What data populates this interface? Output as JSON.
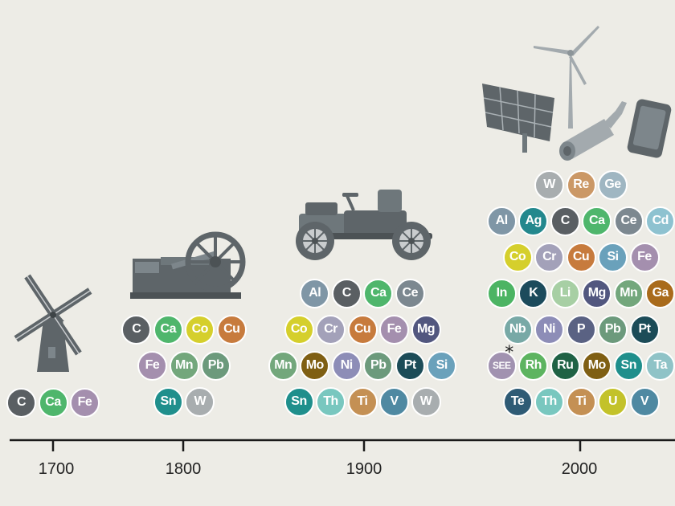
{
  "colors": {
    "C": "#5a5f63",
    "Ca": "#4fb66c",
    "Fe": "#a48fae",
    "Co": "#d5cf2c",
    "Cu": "#c77b3d",
    "Mn": "#73a77c",
    "Pb": "#6c9a7c",
    "Sn": "#1f8f8c",
    "W": "#a8adaf",
    "Al": "#7f96a6",
    "Ce": "#7c8890",
    "Cr": "#a3a1b9",
    "Mg": "#52577f",
    "Mo": "#7f5f13",
    "Ni": "#8d8db7",
    "Pt": "#1c4c58",
    "Si": "#6aa1bb",
    "Th": "#79c7bf",
    "Ti": "#c49054",
    "V": "#4f89a2",
    "Re": "#cb9866",
    "Ge": "#9fb6c2",
    "Ag": "#23888d",
    "Cd": "#8ec2d0",
    "In": "#4cb463",
    "K": "#1c4b5c",
    "Li": "#a7cfa4",
    "Ga": "#a96b1b",
    "Nb": "#78a9a6",
    "P": "#5a6283",
    "SEE": "#a192b0",
    "Rh": "#5db460",
    "Ru": "#1f6245",
    "Ta": "#8fc3c7",
    "Te": "#2f5b75",
    "U": "#c3c22a"
  },
  "eras": [
    {
      "year": "1700",
      "image": "windmill-icon",
      "rows": [
        [
          "C",
          "Ca",
          "Fe"
        ]
      ]
    },
    {
      "year": "1800",
      "image": "steam-engine-icon",
      "rows": [
        [
          "C",
          "Ca",
          "Co",
          "Cu"
        ],
        [
          "Fe",
          "Mn",
          "Pb"
        ],
        [
          "Sn",
          "W"
        ]
      ]
    },
    {
      "year": "1900",
      "image": "car-icon",
      "rows": [
        [
          "Al",
          "C",
          "Ca",
          "Ce"
        ],
        [
          "Co",
          "Cr",
          "Cu",
          "Fe",
          "Mg"
        ],
        [
          "Mn",
          "Mo",
          "Ni",
          "Pb",
          "Pt",
          "Si"
        ],
        [
          "Sn",
          "Th",
          "Ti",
          "V",
          "W"
        ]
      ]
    },
    {
      "year": "2000",
      "images": [
        "solar-panel-icon",
        "wind-turbine-icon",
        "exhaust-pipe-icon",
        "smartphone-icon"
      ],
      "rows": [
        [
          "W",
          "Re",
          "Ge"
        ],
        [
          "Al",
          "Ag",
          "C",
          "Ca",
          "Ce",
          "Cd"
        ],
        [
          "Co",
          "Cr",
          "Cu",
          "Si",
          "Fe"
        ],
        [
          "In",
          "K",
          "Li",
          "Mg",
          "Mn",
          "Ga"
        ],
        [
          "Nb",
          "Ni",
          "P",
          "Pb",
          "Pt"
        ],
        [
          "SEE",
          "Rh",
          "Ru",
          "Mo",
          "Sn",
          "Ta"
        ],
        [
          "Te",
          "Th",
          "Ti",
          "U",
          "V"
        ]
      ]
    }
  ],
  "footnote_marker": "*"
}
